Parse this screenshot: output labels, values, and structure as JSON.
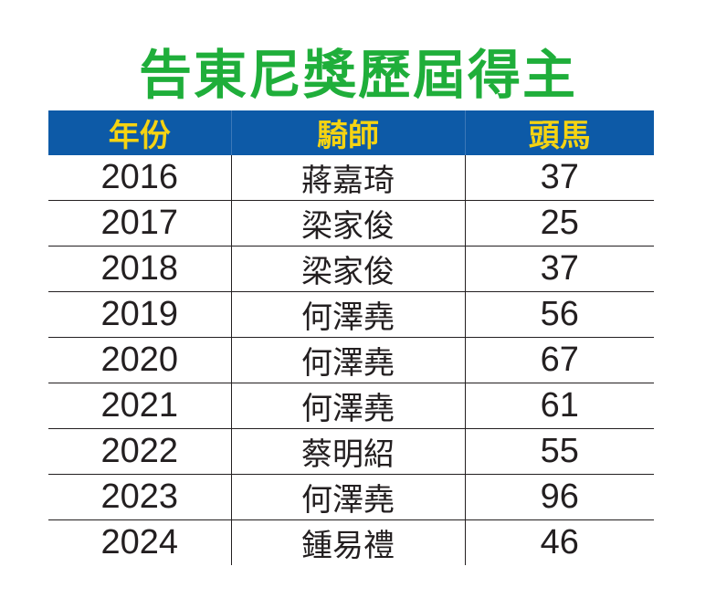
{
  "title": "告東尼獎歷屆得主",
  "table": {
    "headers": [
      "年份",
      "騎師",
      "頭馬"
    ],
    "rows": [
      {
        "year": "2016",
        "jockey": "蔣嘉琦",
        "wins": "37"
      },
      {
        "year": "2017",
        "jockey": "梁家俊",
        "wins": "25"
      },
      {
        "year": "2018",
        "jockey": "梁家俊",
        "wins": "37"
      },
      {
        "year": "2019",
        "jockey": "何澤堯",
        "wins": "56"
      },
      {
        "year": "2020",
        "jockey": "何澤堯",
        "wins": "67"
      },
      {
        "year": "2021",
        "jockey": "何澤堯",
        "wins": "61"
      },
      {
        "year": "2022",
        "jockey": "蔡明紹",
        "wins": "55"
      },
      {
        "year": "2023",
        "jockey": "何澤堯",
        "wins": "96"
      },
      {
        "year": "2024",
        "jockey": "鍾易禮",
        "wins": "46"
      }
    ]
  },
  "colors": {
    "title": "#1fae3a",
    "header_bg": "#0d5aa7",
    "header_text": "#f5d312",
    "body_text": "#231f20"
  }
}
